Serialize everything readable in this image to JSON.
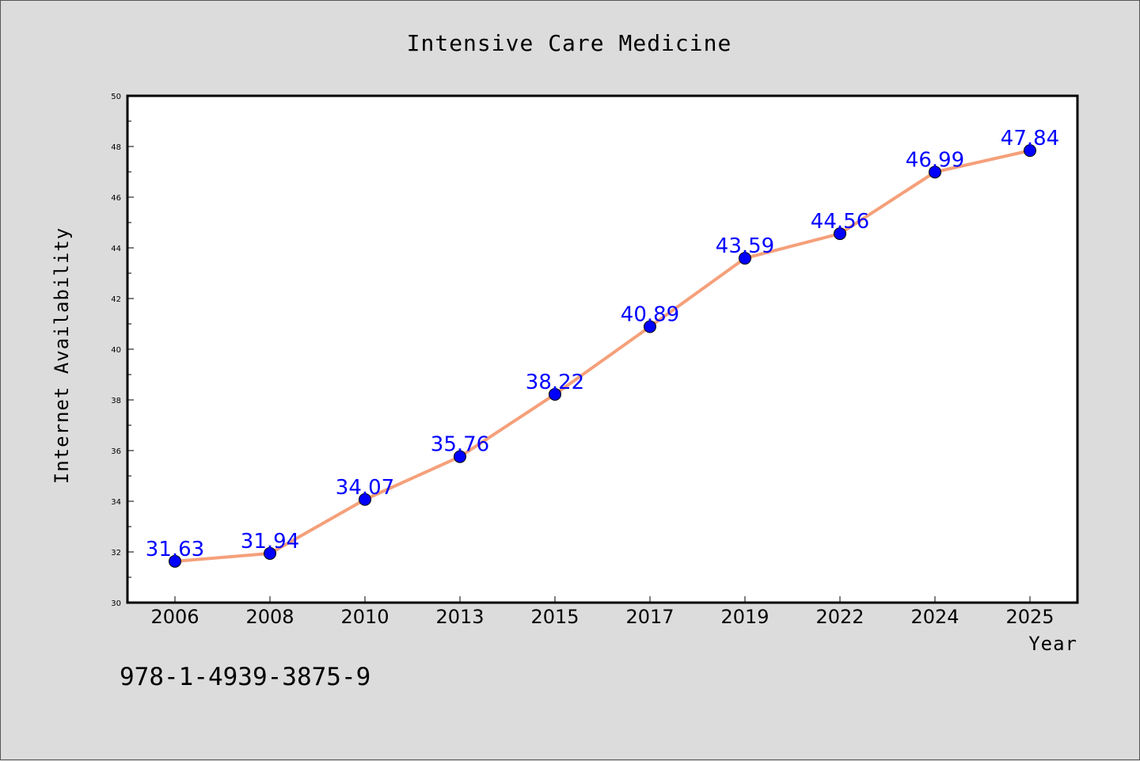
{
  "chart_data": {
    "type": "line",
    "title": "Intensive Care Medicine",
    "xlabel": "Year",
    "ylabel": "Internet Availability",
    "categories": [
      "2006",
      "2008",
      "2010",
      "2013",
      "2015",
      "2017",
      "2019",
      "2022",
      "2024",
      "2025"
    ],
    "series": [
      {
        "values": [
          31.63,
          31.94,
          34.07,
          35.76,
          38.22,
          40.89,
          43.59,
          44.56,
          46.99,
          47.84
        ],
        "line_color": "#f5a07a",
        "marker_color": "#0000ff"
      }
    ],
    "data_labels": [
      "31.63",
      "31.94",
      "34.07",
      "35.76",
      "38.22",
      "40.89",
      "43.59",
      "44.56",
      "46.99",
      "47.84"
    ],
    "ylim": [
      30,
      50
    ],
    "yticks": [
      "30",
      "32",
      "34",
      "36",
      "38",
      "40",
      "42",
      "44",
      "46",
      "48",
      "50"
    ],
    "grid": false,
    "legend": "none"
  },
  "footer": {
    "isbn": "978-1-4939-3875-9"
  },
  "colors": {
    "background": "#dcdcdc",
    "plot_background": "#ffffff",
    "line": "#f5a07a",
    "marker": "#0000ff",
    "data_label": "#0000ff"
  }
}
